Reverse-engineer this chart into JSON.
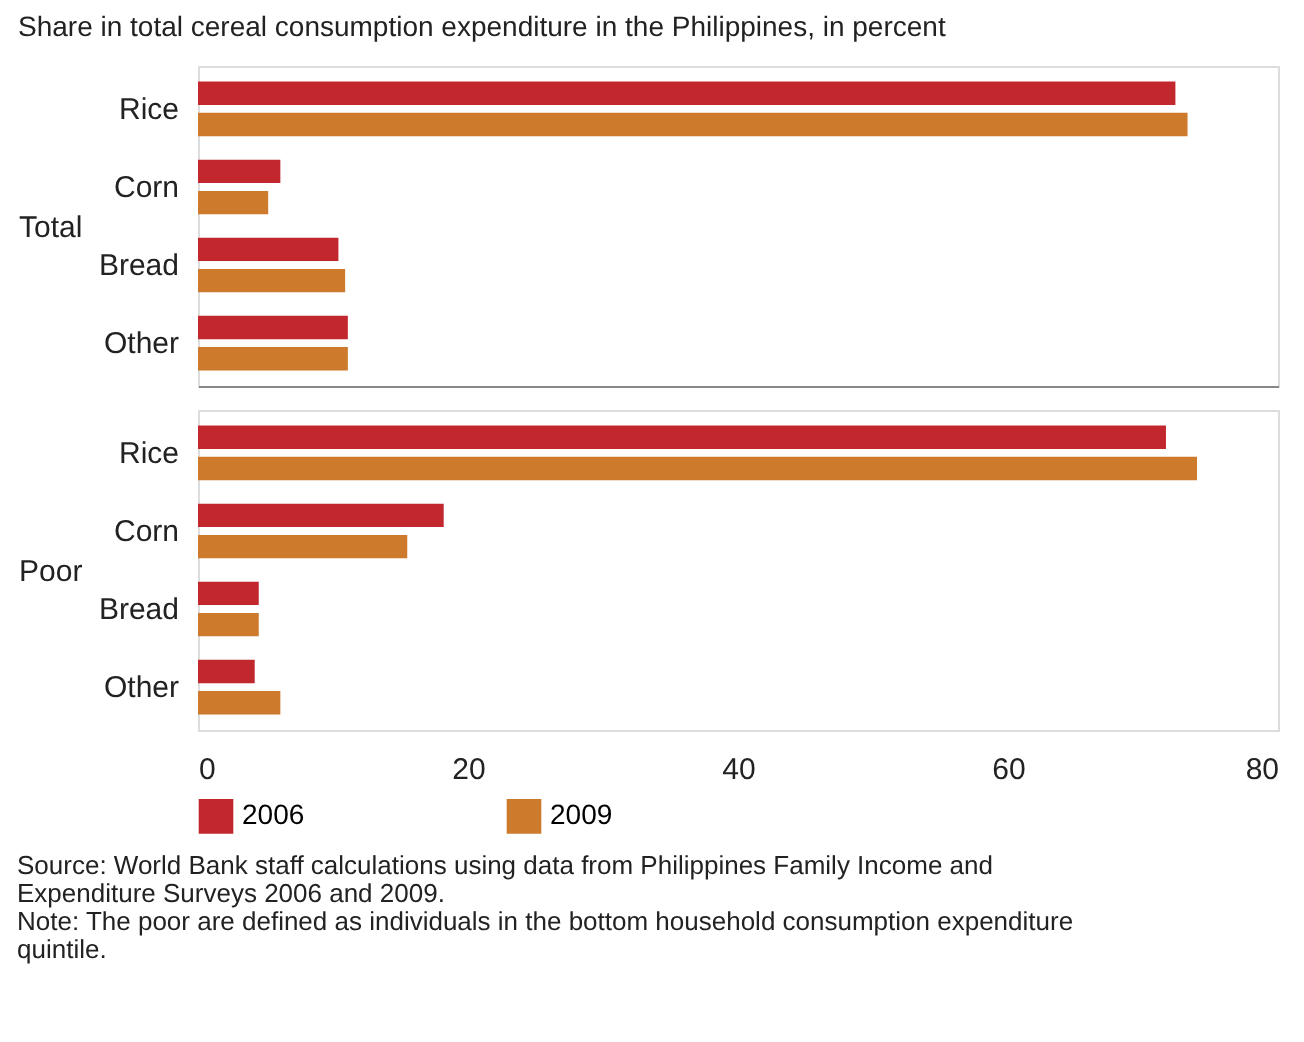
{
  "chart_data": [
    {
      "type": "bar",
      "orientation": "horizontal",
      "title": "Share in total cereal consumption expenditure in the Philippines, in percent",
      "ylabel": "Total",
      "categories": [
        "Rice",
        "Corn",
        "Bread",
        "Other"
      ],
      "series": [
        {
          "name": "2006",
          "color": "#c1272d",
          "values": [
            72.4,
            6.1,
            10.4,
            11.1
          ]
        },
        {
          "name": "2009",
          "color": "#cd7a2c",
          "values": [
            73.3,
            5.2,
            10.9,
            11.1
          ]
        }
      ],
      "xlim": [
        0,
        80
      ],
      "xticks": [
        0,
        20,
        40,
        60,
        80
      ],
      "tick_labels": "y",
      "legend": "bottom left"
    },
    {
      "type": "bar",
      "orientation": "horizontal",
      "ylabel": "Poor",
      "categories": [
        "Rice",
        "Corn",
        "Bread",
        "Other"
      ],
      "series": [
        {
          "name": "2006",
          "color": "#c1272d",
          "values": [
            71.7,
            18.2,
            4.5,
            4.2
          ]
        },
        {
          "name": "2009",
          "color": "#cd7a2c",
          "values": [
            74.0,
            15.5,
            4.5,
            6.1
          ]
        }
      ],
      "xlim": [
        0,
        80
      ],
      "xticks": [
        0,
        20,
        40,
        60,
        80
      ],
      "annotations": [
        "Source: World Bank staff calculations using data from Philippines Family Income and Expenditure Surveys 2006 and 2009.",
        "Note: The poor are defined as individuals in the bottom household consumption expenditure quintile."
      ]
    }
  ]
}
